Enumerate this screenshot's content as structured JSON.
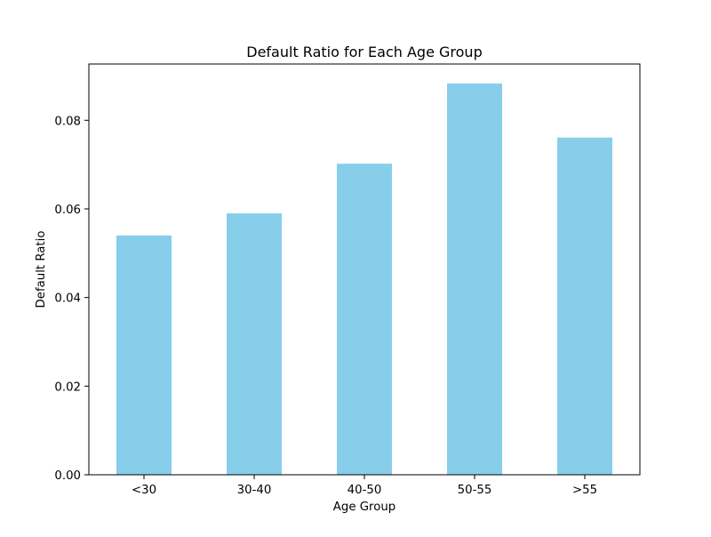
{
  "chart_data": {
    "type": "bar",
    "title": "Default Ratio for Each Age Group",
    "xlabel": "Age Group",
    "ylabel": "Default Ratio",
    "categories": [
      "<30",
      "30-40",
      "40-50",
      "50-55",
      ">55"
    ],
    "values": [
      0.054,
      0.059,
      0.0702,
      0.0883,
      0.0761
    ],
    "ylim": [
      0,
      0.0927
    ],
    "yticks": [
      0.0,
      0.02,
      0.04,
      0.06,
      0.08
    ],
    "ytick_labels": [
      "0.00",
      "0.02",
      "0.04",
      "0.06",
      "0.08"
    ],
    "bar_color": "#87ceeb",
    "grid": false,
    "legend": "none"
  }
}
